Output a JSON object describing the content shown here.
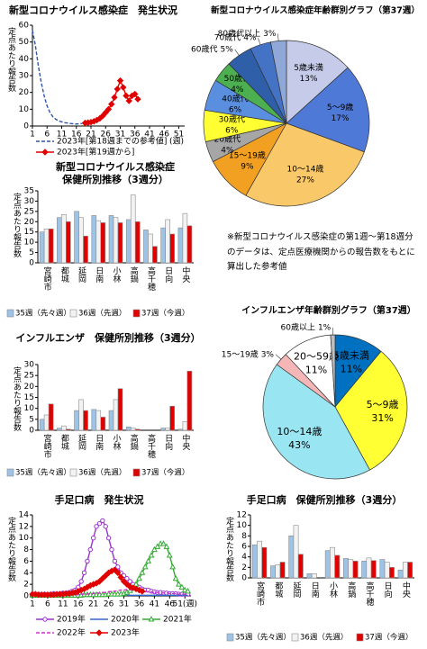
{
  "chart_data": [
    {
      "type": "line",
      "title": "新型コロナウイルス感染症　発生状況",
      "ylabel": "定点あたり報告数",
      "xlabel": "(週)",
      "x": [
        1,
        2,
        3,
        4,
        5,
        6,
        7,
        8,
        9,
        10,
        11,
        12,
        13,
        14,
        15,
        16,
        17,
        18,
        19,
        20,
        21,
        22,
        23,
        24,
        25,
        26,
        27,
        28,
        29,
        30,
        31,
        32,
        33,
        34,
        35,
        36,
        37
      ],
      "xlim": [
        1,
        53
      ],
      "xticks": [
        1,
        6,
        11,
        16,
        21,
        26,
        31,
        36,
        41,
        46,
        51
      ],
      "ylim": [
        0,
        60
      ],
      "yticks": [
        0,
        10,
        20,
        30,
        40,
        50,
        60
      ],
      "series": [
        {
          "name": "2023年[第18週までの参考値]",
          "color": "#2f55a4",
          "dashed": true,
          "values": [
            57,
            48,
            36,
            26,
            18,
            12,
            8,
            5.5,
            4,
            3,
            2.5,
            2,
            1.8,
            1.5,
            1.3,
            1.2,
            1.3,
            1.5,
            null,
            null,
            null,
            null,
            null,
            null,
            null,
            null,
            null,
            null,
            null,
            null,
            null,
            null,
            null,
            null,
            null,
            null,
            null
          ]
        },
        {
          "name": "2023年[第19週から]",
          "color": "#e00000",
          "marker": "diamond",
          "values": [
            null,
            null,
            null,
            null,
            null,
            null,
            null,
            null,
            null,
            null,
            null,
            null,
            null,
            null,
            null,
            null,
            null,
            null,
            1.8,
            2,
            2.3,
            2.8,
            3.5,
            4.5,
            6,
            8,
            10,
            13,
            17,
            22,
            27,
            23,
            18,
            15,
            18,
            19,
            16
          ]
        }
      ]
    },
    {
      "type": "pie",
      "title": "新型コロナウイルス感染症年齢群別グラフ（第37週）",
      "categories": [
        "5歳未満",
        "5～9歳",
        "10～14歳",
        "15～19歳",
        "20歳代",
        "30歳代",
        "40歳代",
        "50歳代",
        "60歳代",
        "70歳代",
        "80歳代以上"
      ],
      "values": [
        13,
        17,
        27,
        9,
        4,
        6,
        6,
        4,
        5,
        4,
        3
      ],
      "value_labels": [
        "13%",
        "17%",
        "27%",
        "9%",
        "4%",
        "6%",
        "6%",
        "4%",
        "5%",
        "4%",
        "3%"
      ],
      "colors": [
        "#c5cbe8",
        "#4f79d6",
        "#f9c969",
        "#f2a022",
        "#a6a6a6",
        "#ffff33",
        "#5a8fe0",
        "#4caf50",
        "#2e5fa8",
        "#4472c4",
        "#8fa8d8"
      ]
    },
    {
      "type": "bar",
      "title": "新型コロナウイルス感染症",
      "subtitle": "保健所別推移（3週分）",
      "ylabel": "定点あたり報告数",
      "categories": [
        "宮崎市",
        "都城",
        "延岡",
        "日南",
        "小林",
        "高鍋",
        "高千穂",
        "日向",
        "中央"
      ],
      "ylim": [
        0,
        35
      ],
      "yticks": [
        0,
        5,
        10,
        15,
        20,
        25,
        30,
        35
      ],
      "series": [
        {
          "name": "35週（先々週）",
          "color": "#9dc3e6",
          "values": [
            15,
            22,
            25,
            23,
            23,
            21,
            16,
            17,
            17
          ]
        },
        {
          "name": "36週（先週）",
          "color": "#f2f2f2",
          "values": [
            16.5,
            23.5,
            22,
            20.5,
            22,
            33,
            14,
            21,
            24
          ]
        },
        {
          "name": "37週（今週）",
          "color": "#e00000",
          "values": [
            16.5,
            20,
            13,
            19.5,
            19.5,
            20,
            8,
            14,
            18
          ]
        }
      ]
    },
    {
      "type": "pie",
      "title": "インフルエンザ年齢群別グラフ（第37週）",
      "categories": [
        "5歳未満",
        "5～9歳",
        "10～14歳",
        "15～19歳",
        "20～59歳",
        "60歳以上"
      ],
      "values": [
        11,
        31,
        43,
        3,
        11,
        1
      ],
      "value_labels": [
        "11%",
        "31%",
        "43%",
        "3%",
        "11%",
        "1%"
      ],
      "colors": [
        "#0070c0",
        "#ffff33",
        "#99e6f2",
        "#f4b6b6",
        "#ffffff",
        "#bfbfbf"
      ]
    },
    {
      "type": "bar",
      "title": "インフルエンザ　保健所別推移（3週分）",
      "ylabel": "定点あたり報告数",
      "categories": [
        "宮崎市",
        "都城",
        "延岡",
        "日南",
        "小林",
        "高鍋",
        "高千穂",
        "日向",
        "中央"
      ],
      "ylim": [
        0,
        30
      ],
      "yticks": [
        0,
        5,
        10,
        15,
        20,
        25,
        30
      ],
      "series": [
        {
          "name": "35週（先々週）",
          "color": "#9dc3e6",
          "values": [
            5,
            1,
            9,
            9.5,
            9,
            1.5,
            0,
            1,
            0.5
          ]
        },
        {
          "name": "36週（先週）",
          "color": "#f2f2f2",
          "values": [
            7,
            2,
            14,
            9,
            14,
            1,
            0,
            1,
            4
          ]
        },
        {
          "name": "37週（今週）",
          "color": "#e00000",
          "values": [
            12,
            0.5,
            9,
            6,
            19,
            0.5,
            0,
            11,
            27
          ]
        }
      ]
    },
    {
      "type": "line",
      "title": "手足口病　発生状況",
      "ylabel": "定点あたり報告数",
      "x": [
        1,
        2,
        3,
        4,
        5,
        6,
        7,
        8,
        9,
        10,
        11,
        12,
        13,
        14,
        15,
        16,
        17,
        18,
        19,
        20,
        21,
        22,
        23,
        24,
        25,
        26,
        27,
        28,
        29,
        30,
        31,
        32,
        33,
        34,
        35,
        36,
        37,
        38,
        39,
        40,
        41,
        42,
        43,
        44,
        45,
        46,
        47,
        48,
        49,
        50,
        51,
        52
      ],
      "xlim": [
        1,
        53
      ],
      "xticks": [
        1,
        6,
        11,
        16,
        21,
        26,
        31,
        36,
        41,
        46,
        {
          "value": 51,
          "label": "51(週)"
        }
      ],
      "ylim": [
        0,
        14
      ],
      "yticks": [
        0,
        2,
        4,
        6,
        8,
        10,
        12,
        14
      ],
      "series": [
        {
          "name": "2019年",
          "color": "#9933cc",
          "marker": "circle",
          "values": [
            0.3,
            0.2,
            0.3,
            0.2,
            0.3,
            0.2,
            0.3,
            0.4,
            0.3,
            0.4,
            0.5,
            0.5,
            0.6,
            0.8,
            1,
            1.5,
            2.5,
            4,
            6,
            8,
            10,
            12,
            12.5,
            13,
            12,
            10,
            8,
            6,
            5,
            4,
            3.5,
            3,
            2.5,
            2,
            1.8,
            1.5,
            1.2,
            1,
            1,
            0.8,
            0.7,
            0.6,
            0.6,
            0.5,
            0.5,
            0.4,
            0.4,
            0.4,
            0.3,
            0.3,
            0.3,
            0.3
          ]
        },
        {
          "name": "2020年",
          "color": "#3366cc",
          "values": [
            0.1,
            0.1,
            0.1,
            0.1,
            0.1,
            0.1,
            0.1,
            0.1,
            0.2,
            0.2,
            0.2,
            0.2,
            0.2,
            0.2,
            0.2,
            0.2,
            0.2,
            0.2,
            0.2,
            0.2,
            0.2,
            0.2,
            0.1,
            0.1,
            0.1,
            0.1,
            0.1,
            0.1,
            0.1,
            0.1,
            0.1,
            0.1,
            0.1,
            0.1,
            0.1,
            0.1,
            0.1,
            0.1,
            0.1,
            0.1,
            0.1,
            0.1,
            0.1,
            0.1,
            0.1,
            0.1,
            0.1,
            0.1,
            0.1,
            0.1,
            0.1,
            0.1
          ]
        },
        {
          "name": "2021年",
          "color": "#33aa33",
          "marker": "triangle",
          "values": [
            0.1,
            0.1,
            0.1,
            0.1,
            0.1,
            0.1,
            0.1,
            0.1,
            0.1,
            0.1,
            0.1,
            0.1,
            0.1,
            0.1,
            0.1,
            0.1,
            0.1,
            0.2,
            0.2,
            0.2,
            0.2,
            0.2,
            0.2,
            0.2,
            0.2,
            0.3,
            0.3,
            0.3,
            0.3,
            0.3,
            0.4,
            0.6,
            0.9,
            1.3,
            2,
            3,
            4,
            5,
            6,
            7,
            8,
            8.5,
            9,
            9,
            8.5,
            7,
            5,
            3,
            2,
            1.5,
            1,
            0.8
          ]
        },
        {
          "name": "2022年",
          "color": "#cc33cc",
          "dashed": true,
          "values": [
            0.3,
            0.3,
            0.2,
            0.2,
            0.2,
            0.2,
            0.2,
            0.2,
            0.2,
            0.2,
            0.2,
            0.2,
            0.2,
            0.2,
            0.2,
            0.2,
            0.3,
            0.3,
            0.3,
            0.4,
            0.4,
            0.5,
            0.5,
            0.6,
            0.6,
            0.7,
            0.8,
            0.8,
            0.9,
            1,
            1,
            1.1,
            1.1,
            1,
            1,
            0.9,
            0.8,
            0.8,
            0.7,
            0.7,
            0.6,
            0.6,
            0.5,
            0.5,
            0.5,
            0.4,
            0.4,
            0.4,
            0.3,
            0.3,
            0.3,
            0.3
          ]
        },
        {
          "name": "2023年",
          "color": "#e00000",
          "marker": "diamond",
          "values": [
            0.3,
            0.3,
            0.2,
            0.2,
            0.2,
            0.2,
            0.2,
            0.2,
            0.3,
            0.3,
            0.3,
            0.4,
            0.4,
            0.5,
            0.6,
            0.8,
            1,
            1.2,
            1.5,
            1.8,
            2,
            2.2,
            2.5,
            3,
            3.5,
            4,
            4.3,
            4.5,
            4,
            3.2,
            2.5,
            2,
            1.6,
            1.4,
            1.2,
            1,
            0.8,
            null,
            null,
            null,
            null,
            null,
            null,
            null,
            null,
            null,
            null,
            null,
            null,
            null,
            null,
            null
          ]
        }
      ]
    },
    {
      "type": "bar",
      "title": "手足口病　保健所別推移（3週分）",
      "ylabel": "定点あたり報告数",
      "categories": [
        "宮崎市",
        "都城",
        "延岡",
        "日南",
        "小林",
        "高鍋",
        "高千穂",
        "日向",
        "中央"
      ],
      "ylim": [
        0,
        12
      ],
      "yticks": [
        0,
        2,
        4,
        6,
        8,
        10,
        12
      ],
      "series": [
        {
          "name": "35週（先々週）",
          "color": "#9dc3e6",
          "values": [
            6.3,
            2.3,
            8,
            0.8,
            5.2,
            3.7,
            3.2,
            3.5,
            1.5
          ]
        },
        {
          "name": "36週（先週）",
          "color": "#f2f2f2",
          "values": [
            7,
            2.5,
            10,
            0.8,
            5.8,
            3.5,
            3.8,
            3,
            3
          ]
        },
        {
          "name": "37週（今週）",
          "color": "#e00000",
          "values": [
            5.8,
            3,
            4.5,
            0,
            4.3,
            3.2,
            3.3,
            2,
            3
          ]
        }
      ]
    }
  ],
  "note": "※新型コロナウイルス感染症の第1週～第18週分のデータは、定点医療機関からの報告数をもとに算出した参考値"
}
